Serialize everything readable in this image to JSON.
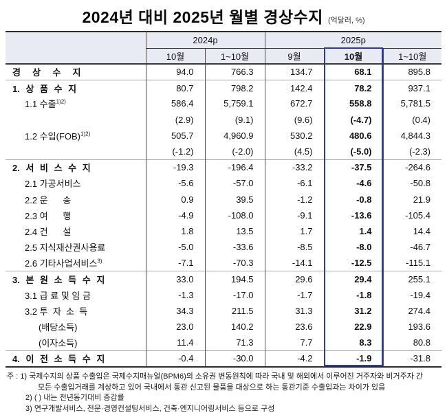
{
  "title": {
    "text": "2024년 대비 2025년 월별 경상수지",
    "unit_note": "(억달러, %)"
  },
  "colors": {
    "header_bg": "#E8EBF4",
    "highlight_border": "#2B3AA0",
    "grid_dark": "#2B2B2B",
    "grid_gray": "#A6A6A6",
    "text": "#111111"
  },
  "table": {
    "col_groups": [
      {
        "label": "2024p",
        "span": 2
      },
      {
        "label": "2025p",
        "span": 3
      }
    ],
    "col_headers": [
      "10월",
      "1~10월",
      "9월",
      "10월",
      "1~10월"
    ],
    "highlight_col_index": 3,
    "rows": [
      {
        "label": "경  상  수  지",
        "sup": "",
        "indent": 0,
        "sep": false,
        "values": [
          "94.0",
          "766.3",
          "134.7",
          "68.1",
          "895.8"
        ]
      },
      {
        "label": "1. 상 품 수 지",
        "sup": "",
        "indent": 0,
        "sep": true,
        "values": [
          "80.7",
          "798.2",
          "142.4",
          "78.2",
          "937.1"
        ]
      },
      {
        "label": "1.1 수출",
        "sup": "1)2)",
        "indent": 1,
        "sep": false,
        "values": [
          "586.4",
          "5,759.1",
          "672.7",
          "558.8",
          "5,781.5"
        ]
      },
      {
        "label": "",
        "sup": "",
        "indent": 1,
        "sep": false,
        "values": [
          "(2.9)",
          "(9.1)",
          "(9.6)",
          "(-4.7)",
          "(0.4)"
        ]
      },
      {
        "label": "1.2 수입(FOB)",
        "sup": "1)2)",
        "indent": 1,
        "sep": false,
        "values": [
          "505.7",
          "4,960.9",
          "530.2",
          "480.6",
          "4,844.3"
        ]
      },
      {
        "label": "",
        "sup": "",
        "indent": 1,
        "sep": false,
        "values": [
          "(-1.2)",
          "(-2.0)",
          "(4.5)",
          "(-5.0)",
          "(-2.3)"
        ]
      },
      {
        "label": "2. 서 비 스 수 지",
        "sup": "",
        "indent": 0,
        "sep": true,
        "values": [
          "-19.3",
          "-196.4",
          "-33.2",
          "-37.5",
          "-264.6"
        ]
      },
      {
        "label": "2.1 가공서비스",
        "sup": "",
        "indent": 1,
        "sep": false,
        "values": [
          "-5.6",
          "-57.0",
          "-6.1",
          "-4.6",
          "-50.8"
        ]
      },
      {
        "label": "2.2 운      송",
        "sup": "",
        "indent": 1,
        "sep": false,
        "values": [
          "0.9",
          "39.5",
          "-1.2",
          "-0.8",
          "21.9"
        ]
      },
      {
        "label": "2.3 여      행",
        "sup": "",
        "indent": 1,
        "sep": false,
        "values": [
          "-4.9",
          "-108.0",
          "-9.1",
          "-13.6",
          "-105.4"
        ]
      },
      {
        "label": "2.4 건      설",
        "sup": "",
        "indent": 1,
        "sep": false,
        "values": [
          "1.8",
          "13.5",
          "1.7",
          "1.4",
          "14.4"
        ]
      },
      {
        "label": "2.5 지식재산권사용료",
        "sup": "",
        "indent": 1,
        "sep": false,
        "values": [
          "-5.0",
          "-33.6",
          "-8.5",
          "-8.0",
          "-46.7"
        ]
      },
      {
        "label": "2.6 기타사업서비스",
        "sup": "3)",
        "indent": 1,
        "sep": false,
        "values": [
          "-7.1",
          "-70.3",
          "-14.1",
          "-12.5",
          "-115.1"
        ]
      },
      {
        "label": "3. 본 원 소 득 수 지",
        "sup": "",
        "indent": 0,
        "sep": true,
        "values": [
          "33.0",
          "194.5",
          "29.6",
          "29.4",
          "255.1"
        ]
      },
      {
        "label": "3.1 급 료 및 임 금",
        "sup": "",
        "indent": 1,
        "sep": false,
        "values": [
          "-1.3",
          "-17.0",
          "-1.7",
          "-1.8",
          "-19.4"
        ]
      },
      {
        "label": "3.2 투  자  소  득",
        "sup": "",
        "indent": 1,
        "sep": false,
        "values": [
          "34.3",
          "211.5",
          "31.3",
          "31.2",
          "274.4"
        ]
      },
      {
        "label": "(배당소득)",
        "sup": "",
        "indent": 2,
        "sep": false,
        "values": [
          "23.0",
          "140.2",
          "23.6",
          "22.9",
          "193.6"
        ]
      },
      {
        "label": "(이자소득)",
        "sup": "",
        "indent": 2,
        "sep": false,
        "values": [
          "11.4",
          "71.3",
          "7.7",
          "8.3",
          "80.8"
        ]
      },
      {
        "label": "4. 이 전 소 득 수 지",
        "sup": "",
        "indent": 0,
        "sep": true,
        "values": [
          "-0.4",
          "-30.0",
          "-4.2",
          "-1.9",
          "-31.8"
        ]
      }
    ]
  },
  "footnotes": {
    "lines": [
      {
        "text": "주 : 1) 국제수지의 상품 수출입은 국제수지매뉴얼(BPM6)의 소유권 변동원칙에 따라 국내 및 해외에서 이루어진 거주자와 비거주자 간"
      },
      {
        "text": "모든 수출입거래를 계상하고 있어 국내에서 통관 신고된 물품을 대상으로 하는 통관기준 수출입과는 차이가 있음"
      },
      {
        "text": "2) (  ) 내는 전년동기대비 증감률"
      },
      {
        "text": "3) 연구개발서비스, 전문·경영컨설팅서비스, 건축·엔지니어링서비스 등으로 구성"
      }
    ]
  }
}
